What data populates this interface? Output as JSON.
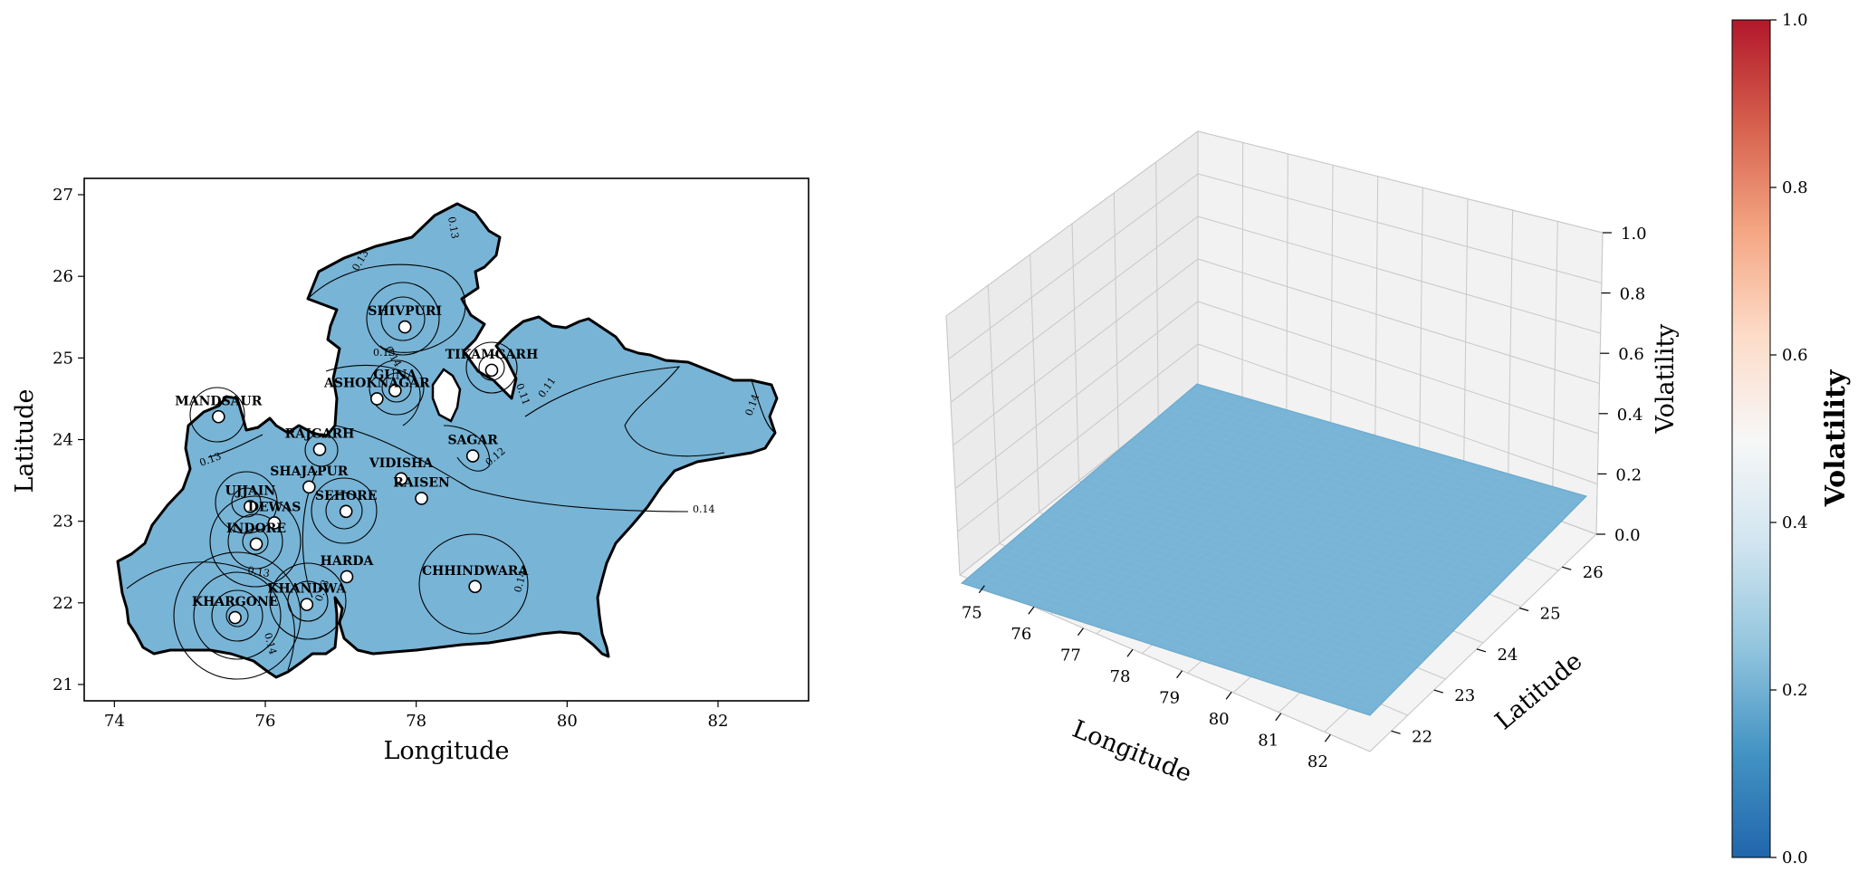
{
  "colors": {
    "surface": "#78b4d6",
    "surface_dark": "#6aa8cc",
    "boundary": "#000000",
    "pane": "#f2f2f2",
    "grid": "#c8c8c8",
    "cmap": [
      "#2166ac",
      "#4393c3",
      "#92c5de",
      "#d1e5f0",
      "#f7f7f7",
      "#fddbc7",
      "#f4a582",
      "#d6604d",
      "#b2182b"
    ]
  },
  "chart_data": [
    {
      "type": "contour_map",
      "xlabel": "Longitude",
      "ylabel": "Latitude",
      "xlim": [
        73.6,
        83.2
      ],
      "ylim": [
        20.8,
        27.2
      ],
      "x_ticks": [
        "74",
        "76",
        "78",
        "80",
        "82"
      ],
      "y_ticks": [
        "21",
        "22",
        "23",
        "24",
        "25",
        "26",
        "27"
      ],
      "contour_levels": [
        "0.11",
        "0.12",
        "0.13",
        "0.14"
      ],
      "stations": [
        {
          "name": "SHIVPURI",
          "lon": 77.85,
          "lat": 25.38
        },
        {
          "name": "TIKAMGARH",
          "lon": 79.0,
          "lat": 24.85
        },
        {
          "name": "GUNA",
          "lon": 77.72,
          "lat": 24.6
        },
        {
          "name": "ASHOKNAGAR",
          "lon": 77.48,
          "lat": 24.5
        },
        {
          "name": "MANDSAUR",
          "lon": 75.38,
          "lat": 24.28
        },
        {
          "name": "RAJGARH",
          "lon": 76.72,
          "lat": 23.88
        },
        {
          "name": "SAGAR",
          "lon": 78.75,
          "lat": 23.8
        },
        {
          "name": "VIDISHA",
          "lon": 77.8,
          "lat": 23.52
        },
        {
          "name": "SHAJAPUR",
          "lon": 76.58,
          "lat": 23.42
        },
        {
          "name": "RAISEN",
          "lon": 78.07,
          "lat": 23.28
        },
        {
          "name": "UJJAIN",
          "lon": 75.8,
          "lat": 23.18
        },
        {
          "name": "SEHORE",
          "lon": 77.07,
          "lat": 23.12
        },
        {
          "name": "DEWAS",
          "lon": 76.12,
          "lat": 22.98
        },
        {
          "name": "INDORE",
          "lon": 75.88,
          "lat": 22.72
        },
        {
          "name": "HARDA",
          "lon": 77.08,
          "lat": 22.32
        },
        {
          "name": "CHHINDWARA",
          "lon": 78.78,
          "lat": 22.2
        },
        {
          "name": "KHANDWA",
          "lon": 76.55,
          "lat": 21.98
        },
        {
          "name": "KHARGONE",
          "lon": 75.6,
          "lat": 21.82
        }
      ]
    },
    {
      "type": "surface3d",
      "xlabel": "Longitude",
      "ylabel": "Latitude",
      "zlabel": "Volatility",
      "xlim": [
        74.5,
        82.8
      ],
      "ylim": [
        21.5,
        26.8
      ],
      "zlim": [
        0,
        1
      ],
      "x_ticks": [
        "75",
        "76",
        "77",
        "78",
        "79",
        "80",
        "81",
        "82"
      ],
      "y_ticks": [
        "22",
        "23",
        "24",
        "25",
        "26"
      ],
      "z_ticks": [
        "0.0",
        "0.2",
        "0.4",
        "0.6",
        "0.8",
        "1.0"
      ],
      "surface_level": 0.13
    },
    {
      "type": "colorbar",
      "label": "Volatility",
      "range": [
        0,
        1
      ],
      "ticks": [
        "0.0",
        "0.2",
        "0.4",
        "0.6",
        "0.8",
        "1.0"
      ]
    }
  ]
}
